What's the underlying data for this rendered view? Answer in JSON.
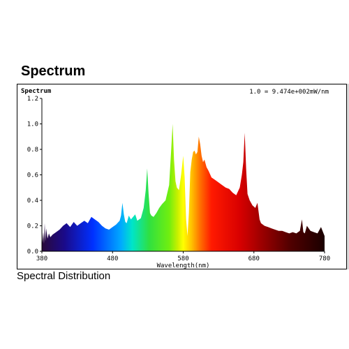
{
  "page": {
    "title": "Spectrum",
    "caption": "Spectral Distribution"
  },
  "chart_data": {
    "type": "area",
    "title": "Spectrum",
    "annotation": "1.0 = 9.474e+002mW/nm",
    "xlabel": "Wavelength(nm)",
    "ylabel": "Spectrum",
    "xlim": [
      380,
      780
    ],
    "ylim": [
      0,
      1.2
    ],
    "xticks": [
      380,
      480,
      580,
      680,
      780
    ],
    "yticks": [
      0.0,
      0.2,
      0.4,
      0.6,
      0.8,
      1.0,
      1.2
    ],
    "ytick_labels": [
      "0.0",
      "0.2",
      "0.4",
      "0.6",
      "0.8",
      "1.0",
      "1.2"
    ],
    "grid": false,
    "series": [
      {
        "x": [
          380,
          382,
          383,
          384,
          385,
          386,
          388,
          390,
          392,
          395,
          400,
          405,
          410,
          415,
          420,
          425,
          430,
          435,
          440,
          445,
          450,
          455,
          460,
          465,
          470,
          475,
          480,
          485,
          490,
          492,
          494,
          496,
          498,
          500,
          503,
          506,
          509,
          512,
          515,
          520,
          524,
          527,
          529,
          531,
          533,
          535,
          538,
          542,
          546,
          550,
          555,
          560,
          563,
          565,
          567,
          569,
          571,
          574,
          577,
          580,
          582,
          584,
          586,
          588,
          590,
          592,
          594,
          596,
          598,
          600,
          602,
          604,
          606,
          608,
          610,
          613,
          616,
          620,
          625,
          630,
          635,
          640,
          645,
          650,
          655,
          660,
          663,
          665,
          667,
          669,
          671,
          674,
          678,
          682,
          685,
          688,
          690,
          695,
          700,
          705,
          710,
          715,
          720,
          725,
          730,
          735,
          740,
          745,
          748,
          750,
          752,
          755,
          760,
          765,
          770,
          775,
          780
        ],
        "values": [
          0.04,
          0.15,
          0.06,
          0.22,
          0.08,
          0.18,
          0.1,
          0.14,
          0.11,
          0.13,
          0.15,
          0.17,
          0.2,
          0.22,
          0.19,
          0.23,
          0.2,
          0.22,
          0.24,
          0.22,
          0.27,
          0.25,
          0.23,
          0.2,
          0.18,
          0.17,
          0.19,
          0.21,
          0.24,
          0.28,
          0.38,
          0.29,
          0.23,
          0.22,
          0.28,
          0.25,
          0.27,
          0.29,
          0.24,
          0.26,
          0.34,
          0.48,
          0.65,
          0.45,
          0.3,
          0.28,
          0.27,
          0.3,
          0.34,
          0.37,
          0.4,
          0.52,
          0.8,
          1.0,
          0.72,
          0.55,
          0.5,
          0.48,
          0.6,
          0.75,
          0.58,
          0.25,
          0.12,
          0.3,
          0.62,
          0.72,
          0.78,
          0.79,
          0.76,
          0.78,
          0.9,
          0.84,
          0.75,
          0.7,
          0.72,
          0.66,
          0.63,
          0.58,
          0.56,
          0.54,
          0.52,
          0.5,
          0.49,
          0.46,
          0.44,
          0.5,
          0.6,
          0.7,
          0.93,
          0.65,
          0.45,
          0.4,
          0.36,
          0.34,
          0.38,
          0.25,
          0.22,
          0.2,
          0.19,
          0.18,
          0.17,
          0.16,
          0.16,
          0.15,
          0.14,
          0.15,
          0.14,
          0.16,
          0.25,
          0.15,
          0.14,
          0.2,
          0.16,
          0.15,
          0.14,
          0.19,
          0.12
        ]
      }
    ]
  }
}
